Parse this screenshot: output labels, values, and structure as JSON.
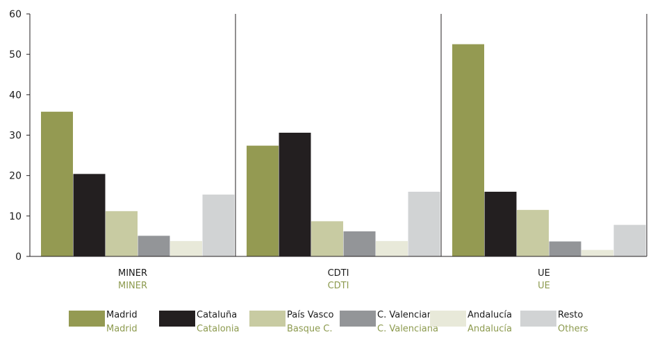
{
  "chart_data": {
    "type": "bar",
    "categories": [
      "MINER",
      "CDTI",
      "UE"
    ],
    "categories_en": [
      "MINER",
      "CDTI",
      "UE"
    ],
    "ylim": [
      0,
      60
    ],
    "yticks": [
      0,
      10,
      20,
      30,
      40,
      50,
      60
    ],
    "grid": false,
    "legend_position": "bottom",
    "series": [
      {
        "name": "Madrid",
        "name_en": "Madrid",
        "color": "#949a52",
        "values": [
          35.8,
          27.4,
          52.5
        ]
      },
      {
        "name": "Cataluña",
        "name_en": "Catalonia",
        "color": "#231f20",
        "values": [
          20.4,
          30.6,
          16.0
        ]
      },
      {
        "name": "País Vasco",
        "name_en": "Basque C.",
        "color": "#c8cba2",
        "values": [
          11.2,
          8.7,
          11.5
        ]
      },
      {
        "name": "C. Valenciana",
        "name_en": "C. Valenciana",
        "color": "#939598",
        "values": [
          5.1,
          6.2,
          3.7
        ]
      },
      {
        "name": "Andalucía",
        "name_en": "Andalucía",
        "color": "#e8e9d9",
        "values": [
          3.8,
          3.8,
          1.6
        ]
      },
      {
        "name": "Resto",
        "name_en": "Others",
        "color": "#d1d3d4",
        "values": [
          15.3,
          16.0,
          7.8
        ]
      }
    ]
  }
}
